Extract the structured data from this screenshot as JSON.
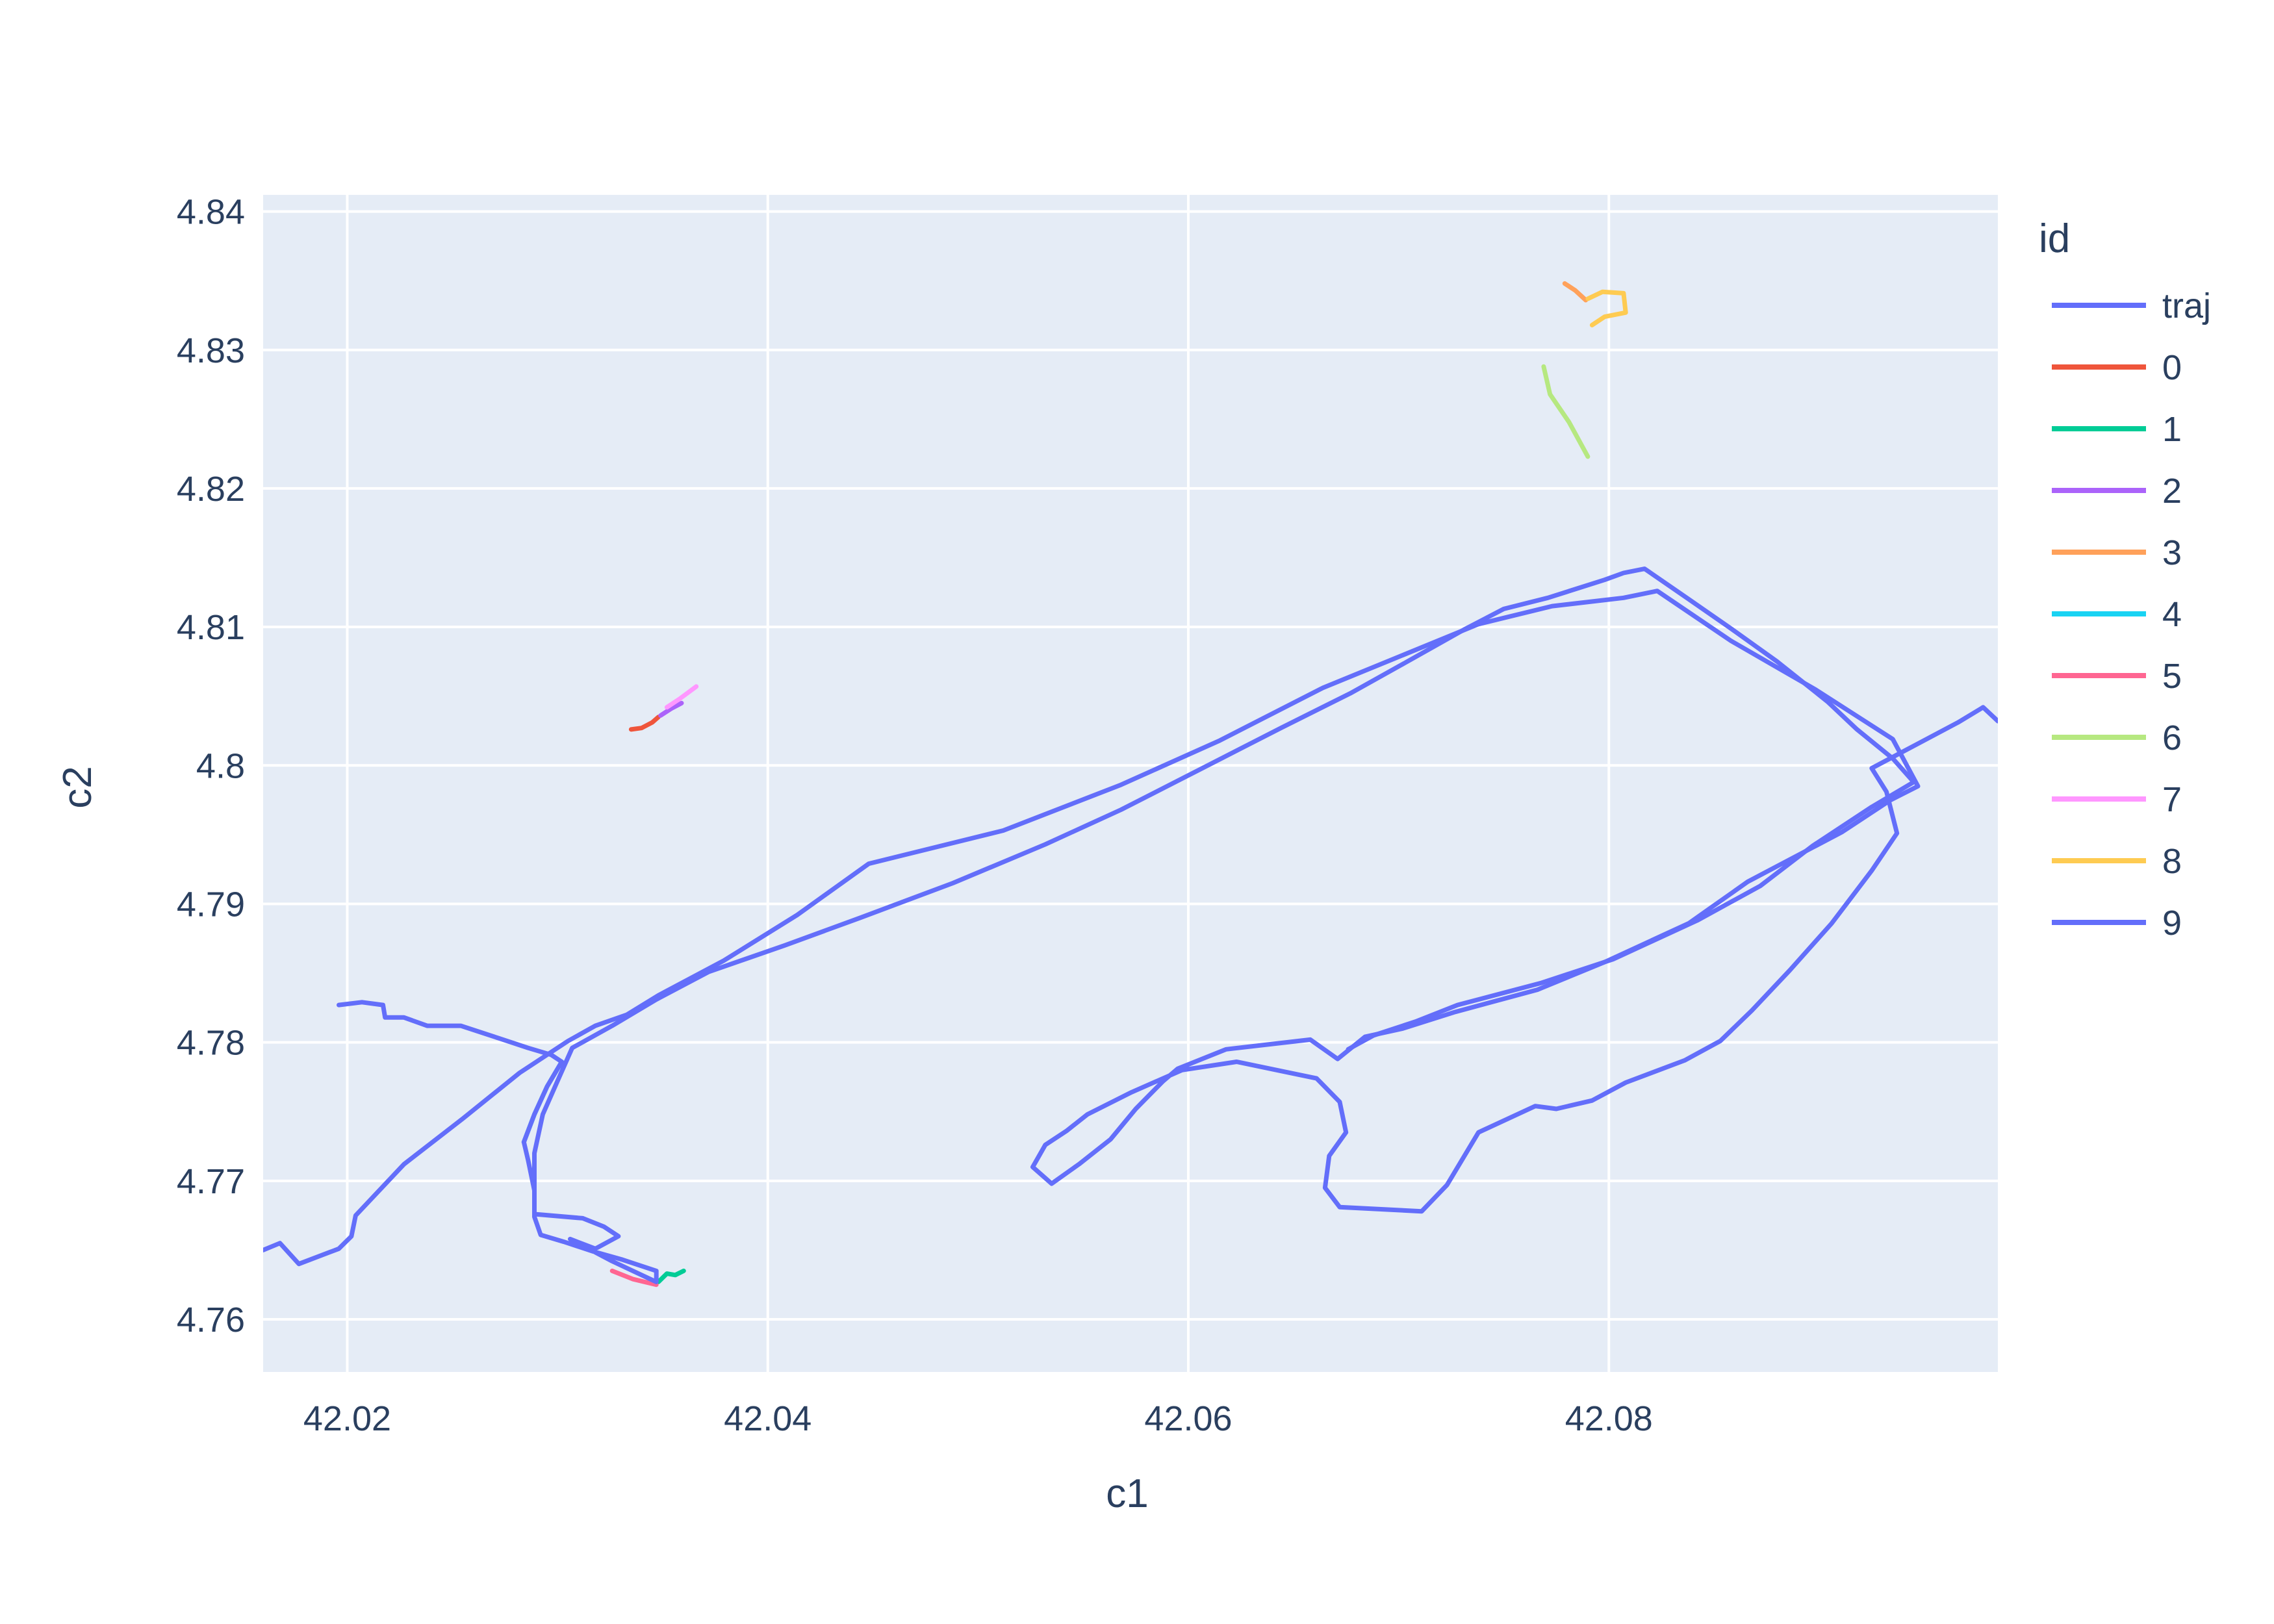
{
  "chart_data": {
    "type": "line",
    "xlabel": "c1",
    "ylabel": "c2",
    "xlim": [
      42.016,
      42.0985
    ],
    "ylim": [
      4.7562,
      4.8412
    ],
    "xticks": [
      42.02,
      42.04,
      42.06,
      42.08
    ],
    "xtick_labels": [
      "42.02",
      "42.04",
      "42.06",
      "42.08"
    ],
    "yticks": [
      4.76,
      4.77,
      4.78,
      4.79,
      4.8,
      4.81,
      4.82,
      4.83,
      4.84
    ],
    "ytick_labels": [
      "4.76",
      "4.77",
      "4.78",
      "4.79",
      "4.8",
      "4.81",
      "4.82",
      "4.83",
      "4.84"
    ],
    "grid": true,
    "plot_background": "#e5ecf6",
    "legend_title": "id",
    "legend_position": "right",
    "series": [
      {
        "name": "traj",
        "color": "#636efa",
        "points": [
          [
            42.016,
            4.765
          ],
          [
            42.0168,
            4.7655
          ],
          [
            42.0177,
            4.764
          ],
          [
            42.0196,
            4.7651
          ],
          [
            42.0202,
            4.766
          ],
          [
            42.0204,
            4.7675
          ],
          [
            42.0227,
            4.7712
          ],
          [
            42.0255,
            4.7745
          ],
          [
            42.0282,
            4.7778
          ],
          [
            42.0305,
            4.7801
          ],
          [
            42.0318,
            4.7812
          ],
          [
            42.0333,
            4.782
          ],
          [
            42.0348,
            4.7834
          ],
          [
            42.0379,
            4.7859
          ],
          [
            42.0414,
            4.7892
          ],
          [
            42.0448,
            4.7929
          ],
          [
            42.0512,
            4.7953
          ],
          [
            42.0568,
            4.7986
          ],
          [
            42.0615,
            4.8018
          ],
          [
            42.0664,
            4.8056
          ],
          [
            42.0738,
            4.8102
          ],
          [
            42.0773,
            4.8115
          ],
          [
            42.0807,
            4.8121
          ],
          [
            42.0823,
            4.8126
          ],
          [
            42.0858,
            4.809
          ],
          [
            42.0898,
            4.8055
          ],
          [
            42.0935,
            4.8019
          ],
          [
            42.0947,
            4.7985
          ],
          [
            42.0934,
            4.7975
          ],
          [
            42.0911,
            4.7952
          ],
          [
            42.0866,
            4.7916
          ],
          [
            42.0838,
            4.7886
          ],
          [
            42.0798,
            4.7858
          ],
          [
            42.0766,
            4.7838
          ],
          [
            42.0727,
            4.7822
          ],
          [
            42.0702,
            4.781
          ],
          [
            42.0684,
            4.7804
          ],
          [
            42.0671,
            4.7788
          ],
          [
            42.0658,
            4.7802
          ],
          [
            42.0618,
            4.7795
          ],
          [
            42.0595,
            4.7781
          ],
          [
            42.0588,
            4.7772
          ],
          [
            42.0575,
            4.7752
          ],
          [
            42.0563,
            4.773
          ],
          [
            42.0548,
            4.7712
          ],
          [
            42.0535,
            4.7698
          ],
          [
            42.0526,
            4.771
          ],
          [
            42.0532,
            4.7726
          ],
          [
            42.0542,
            4.7736
          ],
          [
            42.0552,
            4.7748
          ],
          [
            42.0573,
            4.7764
          ],
          [
            42.0597,
            4.778
          ],
          [
            42.0623,
            4.7786
          ],
          [
            42.0661,
            4.7774
          ],
          [
            42.0672,
            4.7757
          ],
          [
            42.0675,
            4.7735
          ],
          [
            42.0667,
            4.7718
          ],
          [
            42.0665,
            4.7695
          ],
          [
            42.0672,
            4.7681
          ],
          [
            42.0711,
            4.7678
          ],
          [
            42.0723,
            4.7697
          ],
          [
            42.0738,
            4.7735
          ],
          [
            42.0765,
            4.7754
          ],
          [
            42.0775,
            4.7752
          ],
          [
            42.0792,
            4.7758
          ],
          [
            42.0808,
            4.7771
          ],
          [
            42.0836,
            4.7787
          ],
          [
            42.0853,
            4.7801
          ],
          [
            42.0868,
            4.7823
          ],
          [
            42.0886,
            4.7852
          ],
          [
            42.0906,
            4.7886
          ],
          [
            42.0925,
            4.7924
          ],
          [
            42.0937,
            4.7951
          ],
          [
            42.0932,
            4.7981
          ],
          [
            42.0925,
            4.7998
          ],
          [
            42.0966,
            4.8031
          ],
          [
            42.0978,
            4.8042
          ],
          [
            42.0985,
            4.8032
          ]
        ]
      },
      {
        "name": "0",
        "color": "#ef553b",
        "points": [
          [
            42.0335,
            4.8026
          ],
          [
            42.034,
            4.8027
          ],
          [
            42.0345,
            4.8031
          ],
          [
            42.0348,
            4.8035
          ]
        ]
      },
      {
        "name": "1",
        "color": "#00cc96",
        "points": [
          [
            42.0348,
            4.7627
          ],
          [
            42.0352,
            4.7633
          ],
          [
            42.0356,
            4.7632
          ],
          [
            42.036,
            4.7635
          ]
        ]
      },
      {
        "name": "2",
        "color": "#ab63fa",
        "points": [
          [
            42.0349,
            4.8036
          ],
          [
            42.0354,
            4.8041
          ],
          [
            42.0359,
            4.8045
          ]
        ]
      },
      {
        "name": "3",
        "color": "#ffa15a",
        "points": [
          [
            42.0779,
            4.8348
          ],
          [
            42.0784,
            4.8343
          ],
          [
            42.0789,
            4.8336
          ]
        ]
      },
      {
        "name": "4",
        "color": "#19d3f3",
        "points": [
          [
            42.0302,
            4.7786
          ],
          [
            42.0295,
            4.7768
          ],
          [
            42.0289,
            4.7748
          ],
          [
            42.0284,
            4.7728
          ]
        ]
      },
      {
        "name": "5",
        "color": "#ff6692",
        "points": [
          [
            42.0326,
            4.7635
          ],
          [
            42.0336,
            4.7629
          ],
          [
            42.0347,
            4.7625
          ]
        ]
      },
      {
        "name": "6",
        "color": "#b6e880",
        "points": [
          [
            42.0769,
            4.8288
          ],
          [
            42.0772,
            4.8268
          ],
          [
            42.0781,
            4.8248
          ],
          [
            42.079,
            4.8223
          ]
        ]
      },
      {
        "name": "7",
        "color": "#ff97ff",
        "points": [
          [
            42.0352,
            4.8042
          ],
          [
            42.0358,
            4.8048
          ],
          [
            42.0366,
            4.8057
          ]
        ]
      },
      {
        "name": "8",
        "color": "#fecb52",
        "points": [
          [
            42.079,
            4.8337
          ],
          [
            42.0797,
            4.8342
          ],
          [
            42.0807,
            4.8341
          ],
          [
            42.0808,
            4.8327
          ],
          [
            42.0798,
            4.8324
          ],
          [
            42.0792,
            4.8318
          ]
        ]
      },
      {
        "name": "9",
        "color": "#636efa",
        "points": [
          [
            42.0196,
            4.7827
          ],
          [
            42.0207,
            4.7829
          ],
          [
            42.0217,
            4.7827
          ],
          [
            42.0218,
            4.7818
          ],
          [
            42.0227,
            4.7818
          ],
          [
            42.0238,
            4.7812
          ],
          [
            42.0254,
            4.7812
          ],
          [
            42.0272,
            4.7803
          ],
          [
            42.0286,
            4.7796
          ],
          [
            42.0297,
            4.7791
          ],
          [
            42.0302,
            4.7786
          ],
          [
            42.0295,
            4.7768
          ],
          [
            42.0289,
            4.7748
          ],
          [
            42.0284,
            4.7728
          ],
          [
            42.0286,
            4.7715
          ],
          [
            42.0289,
            4.7693
          ],
          [
            42.0289,
            4.7676
          ],
          [
            42.0312,
            4.7673
          ],
          [
            42.0322,
            4.7667
          ],
          [
            42.0329,
            4.766
          ],
          [
            42.0318,
            4.7651
          ],
          [
            42.0306,
            4.7658
          ],
          [
            42.0326,
            4.7642
          ],
          [
            42.0347,
            4.7627
          ],
          [
            42.0347,
            4.7635
          ],
          [
            42.0331,
            4.7643
          ],
          [
            42.0317,
            4.7649
          ],
          [
            42.0303,
            4.7656
          ],
          [
            42.0292,
            4.7661
          ],
          [
            42.0289,
            4.7674
          ],
          [
            42.0289,
            4.7698
          ],
          [
            42.0289,
            4.772
          ],
          [
            42.0293,
            4.7748
          ],
          [
            42.0302,
            4.7779
          ],
          [
            42.0307,
            4.7796
          ],
          [
            42.0326,
            4.7812
          ],
          [
            42.0347,
            4.7831
          ],
          [
            42.0372,
            4.7851
          ],
          [
            42.0408,
            4.787
          ],
          [
            42.0444,
            4.789
          ],
          [
            42.0488,
            4.7915
          ],
          [
            42.0532,
            4.7943
          ],
          [
            42.0568,
            4.7968
          ],
          [
            42.0608,
            4.7999
          ],
          [
            42.0644,
            4.8027
          ],
          [
            42.0677,
            4.8052
          ],
          [
            42.0703,
            4.8074
          ],
          [
            42.0731,
            4.8098
          ],
          [
            42.075,
            4.8113
          ],
          [
            42.0771,
            4.8121
          ],
          [
            42.0798,
            4.8134
          ],
          [
            42.0807,
            4.8139
          ],
          [
            42.0817,
            4.8142
          ],
          [
            42.0838,
            4.812
          ],
          [
            42.0857,
            4.81
          ],
          [
            42.088,
            4.8075
          ],
          [
            42.0904,
            4.8046
          ],
          [
            42.0918,
            4.8026
          ],
          [
            42.0935,
            4.8005
          ],
          [
            42.0945,
            4.7988
          ],
          [
            42.0925,
            4.797
          ],
          [
            42.0897,
            4.7942
          ],
          [
            42.0872,
            4.7913
          ],
          [
            42.0842,
            4.7888
          ],
          [
            42.0802,
            4.786
          ],
          [
            42.0768,
            4.7843
          ],
          [
            42.0728,
            4.7827
          ],
          [
            42.0708,
            4.7815
          ],
          [
            42.0688,
            4.7805
          ],
          [
            42.0676,
            4.7795
          ]
        ]
      }
    ],
    "legend_items": [
      "traj",
      "0",
      "1",
      "2",
      "3",
      "4",
      "5",
      "6",
      "7",
      "8",
      "9"
    ]
  }
}
